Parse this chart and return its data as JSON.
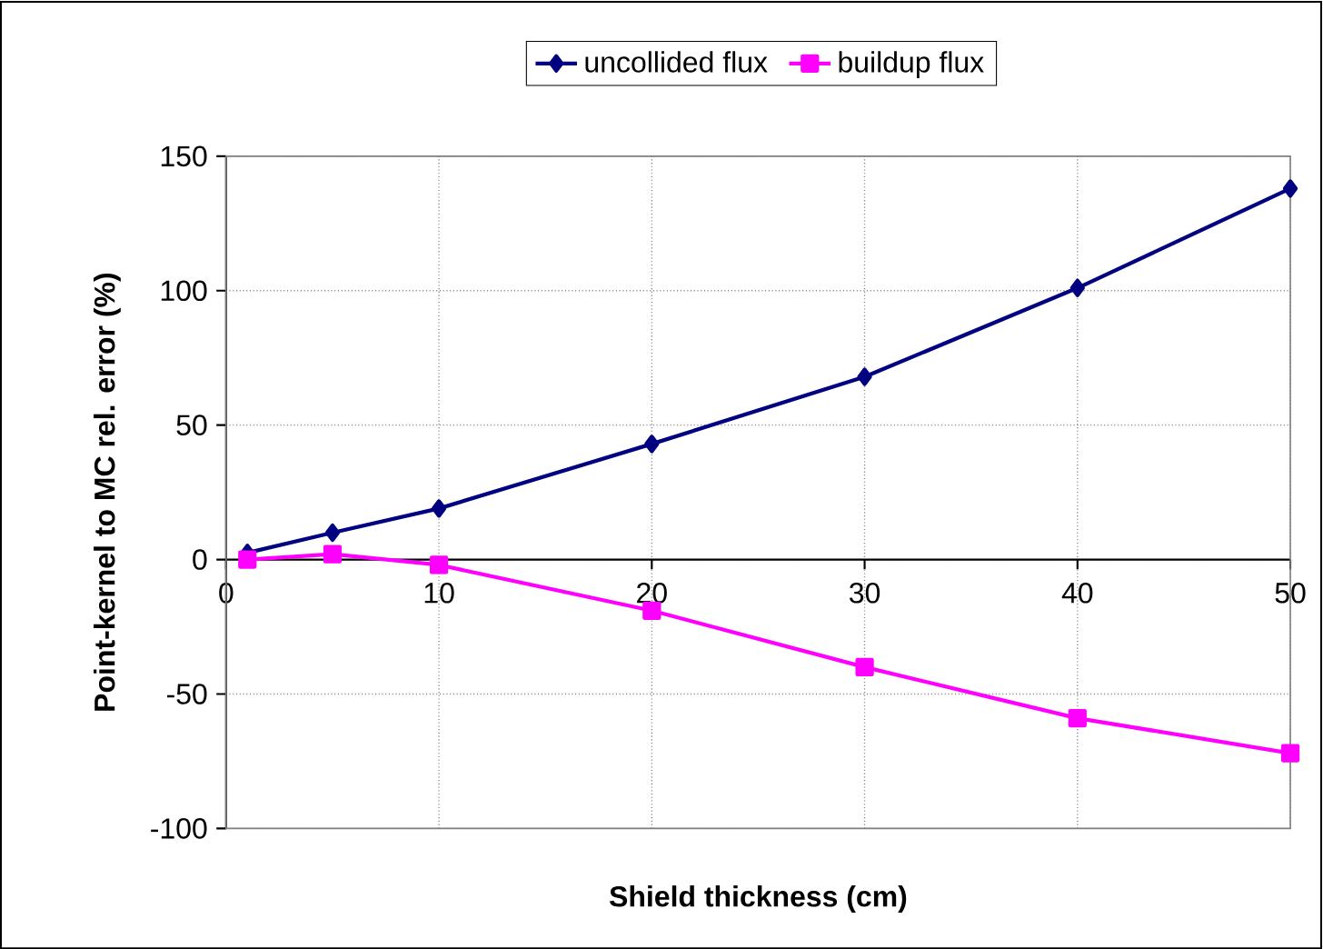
{
  "chart_data": {
    "type": "line",
    "xlabel": "Shield thickness (cm)",
    "ylabel": "Point-kernel to MC rel. error (%)",
    "x": [
      1,
      5,
      10,
      20,
      30,
      40,
      50
    ],
    "series": [
      {
        "name": "uncollided flux",
        "color": "#000080",
        "marker": "diamond",
        "values": [
          2.5,
          10,
          19,
          43,
          68,
          101,
          138
        ]
      },
      {
        "name": "buildup flux",
        "color": "#ff00ff",
        "marker": "square",
        "values": [
          0,
          2,
          -2,
          -19,
          -40,
          -59,
          -72
        ]
      }
    ],
    "xlim": [
      0,
      50
    ],
    "ylim": [
      -100,
      150
    ],
    "xticks": [
      0,
      10,
      20,
      30,
      40,
      50
    ],
    "yticks": [
      -100,
      -50,
      0,
      50,
      100,
      150
    ],
    "grid": true,
    "legend": "top",
    "line_style": "solid"
  }
}
